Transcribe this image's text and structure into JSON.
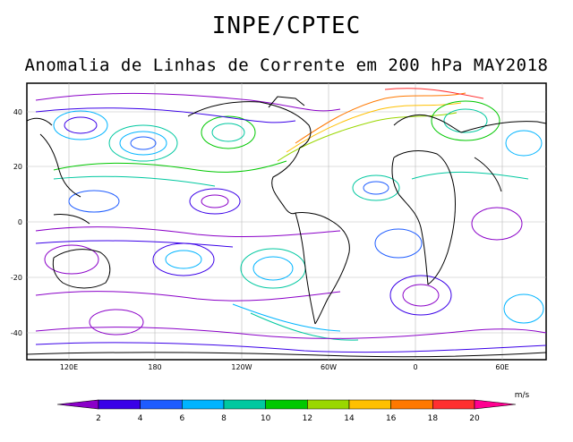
{
  "header": {
    "title": "INPE/CPTEC",
    "subtitle": "Anomalia de Linhas de Corrente em 200 hPa MAY2018"
  },
  "axes": {
    "lat_labels": [
      "40",
      "20",
      "0",
      "-20",
      "-40"
    ],
    "lon_labels": [
      "120E",
      "180",
      "120W",
      "60W",
      "0",
      "60E"
    ]
  },
  "colorbar": {
    "unit": "m/s",
    "ticks": [
      "2",
      "4",
      "6",
      "8",
      "10",
      "12",
      "14",
      "16",
      "18",
      "20"
    ],
    "colors": [
      "#8a00c8",
      "#3a00e8",
      "#1e5cff",
      "#00b4ff",
      "#00c8a0",
      "#00c800",
      "#9ad700",
      "#ffc000",
      "#ff7800",
      "#ff3030",
      "#ff0090"
    ]
  }
}
